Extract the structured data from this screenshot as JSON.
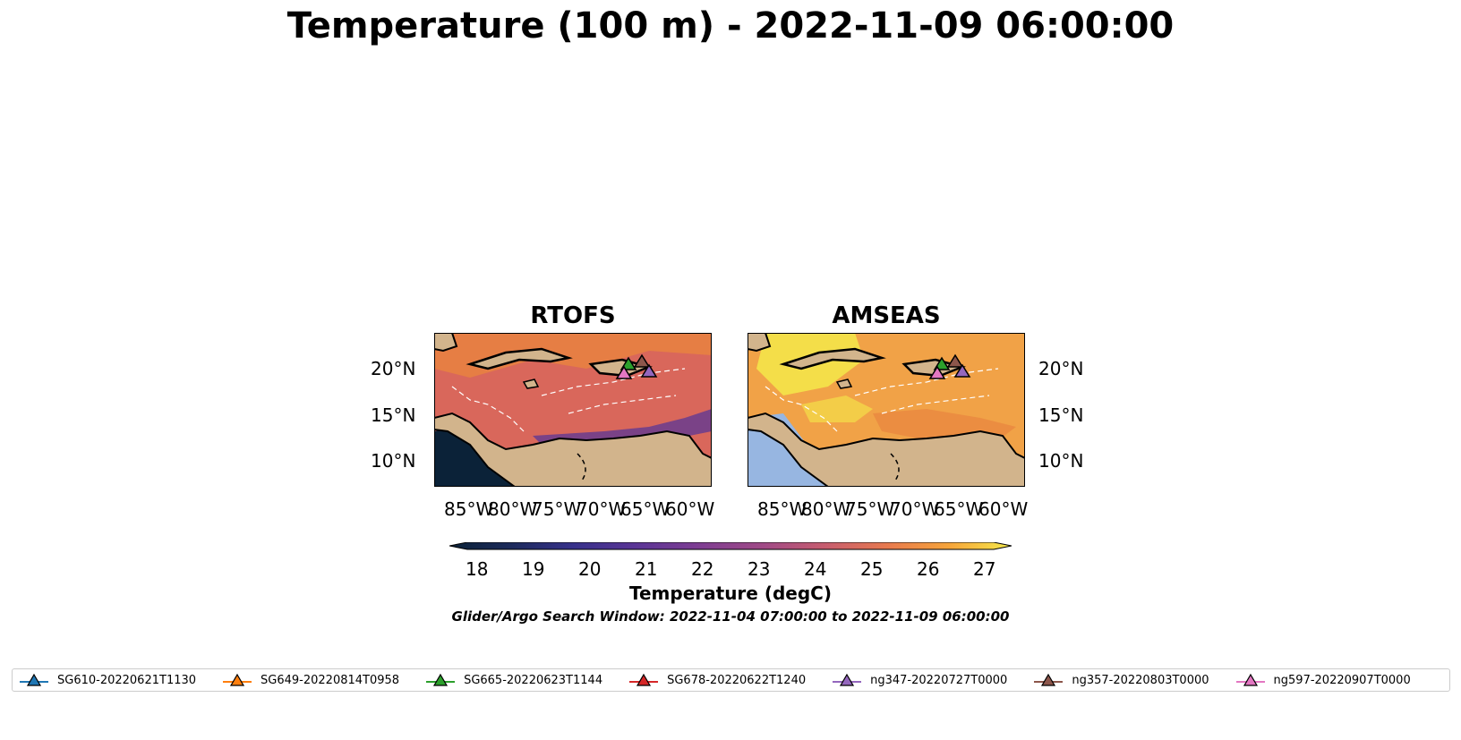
{
  "figure": {
    "title": "Temperature (100 m) - 2022-11-09 06:00:00",
    "panels": [
      {
        "title": "RTOFS"
      },
      {
        "title": "AMSEAS"
      }
    ],
    "x_ticks": [
      "85°W",
      "80°W",
      "75°W",
      "70°W",
      "65°W",
      "60°W"
    ],
    "y_ticks": [
      "20°N",
      "15°N",
      "10°N"
    ],
    "colorbar": {
      "label": "Temperature (degC)",
      "ticks": [
        "18",
        "19",
        "20",
        "21",
        "22",
        "23",
        "24",
        "25",
        "26",
        "27"
      ],
      "colors": [
        "#0b2238",
        "#1d2b5c",
        "#37318b",
        "#5a3596",
        "#7d3d93",
        "#a14a86",
        "#c85d6e",
        "#e87a4e",
        "#f6a53a",
        "#f5e94a"
      ]
    },
    "search_window": "Glider/Argo Search Window: 2022-11-04 07:00:00 to 2022-11-09 06:00:00"
  },
  "legend": [
    {
      "label": "SG610-20220621T1130",
      "color": "#1f77b4"
    },
    {
      "label": "SG649-20220814T0958",
      "color": "#ff7f0e"
    },
    {
      "label": "SG665-20220623T1144",
      "color": "#2ca02c"
    },
    {
      "label": "SG678-20220622T1240",
      "color": "#d62728"
    },
    {
      "label": "ng347-20220727T0000",
      "color": "#9467bd"
    },
    {
      "label": "ng357-20220803T0000",
      "color": "#8c564b"
    },
    {
      "label": "ng597-20220907T0000",
      "color": "#e377c2"
    }
  ],
  "map_colors": {
    "land": "#d2b48c",
    "water": "#97b6e1",
    "rtofs_sea": "#d9675b",
    "amseas_sea": "#f1a247"
  }
}
